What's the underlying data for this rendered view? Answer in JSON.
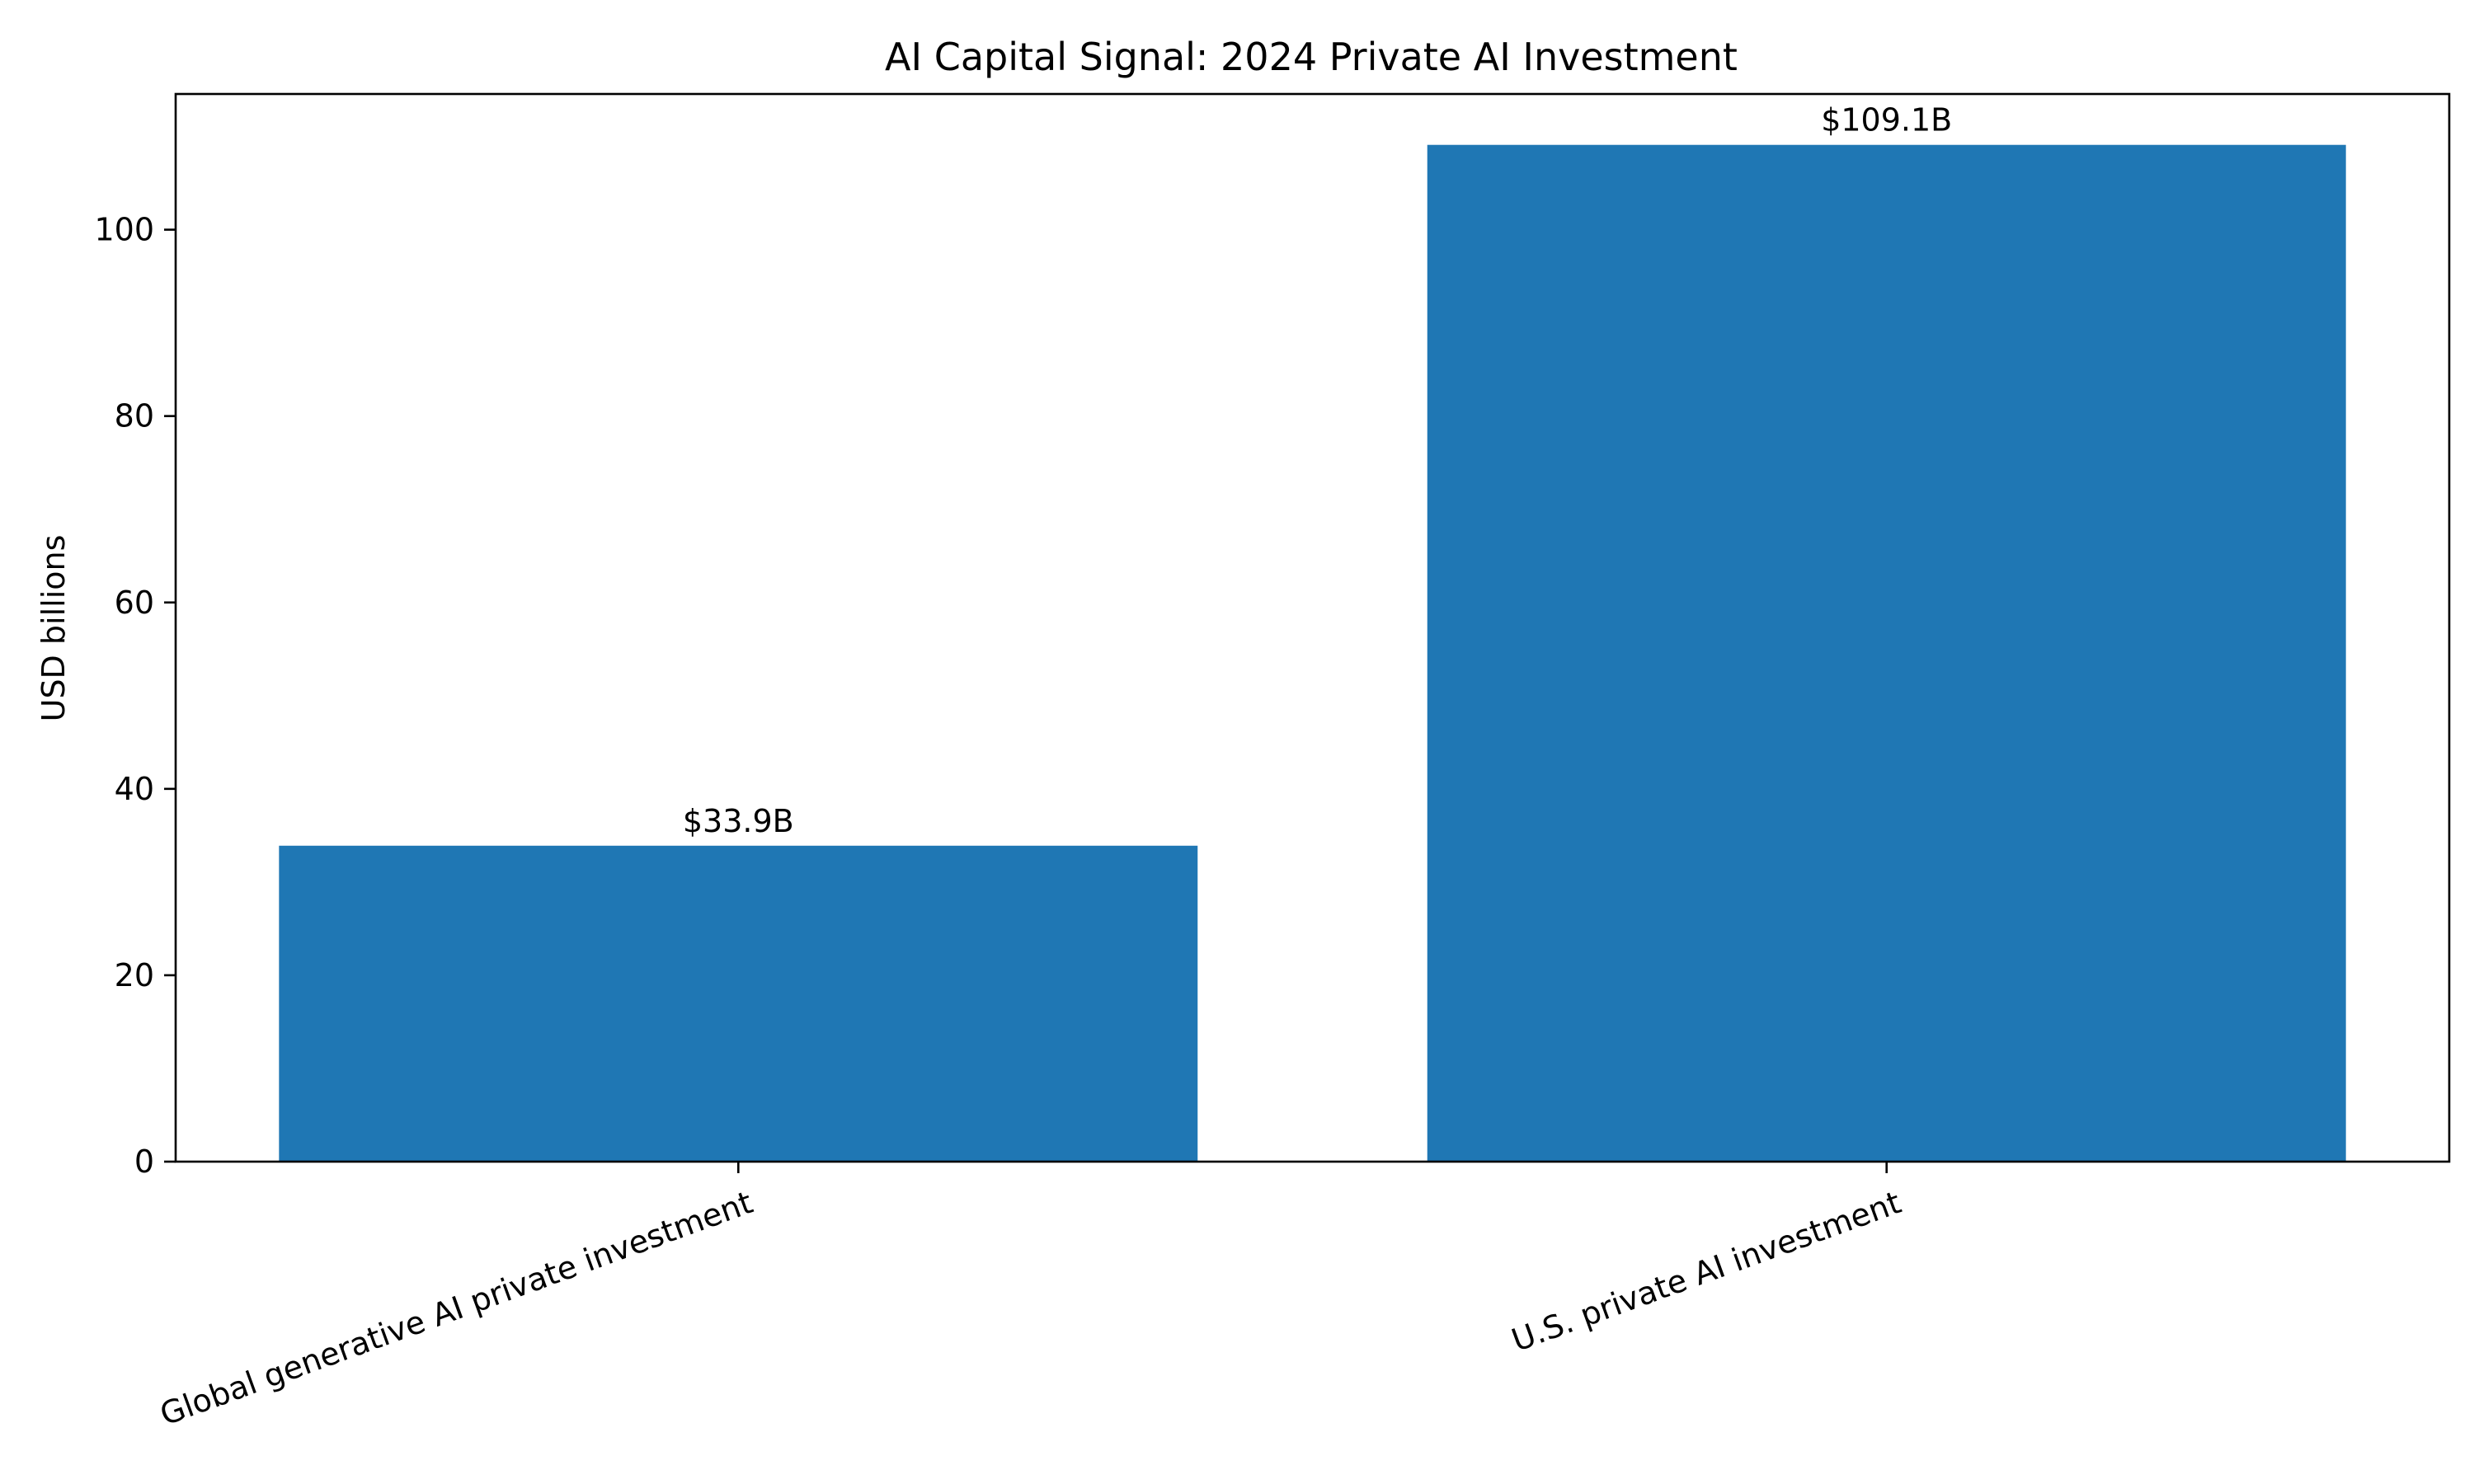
{
  "chart_data": {
    "type": "bar",
    "title": "AI Capital Signal: 2024 Private AI Investment",
    "xlabel": "",
    "ylabel": "USD billions",
    "categories": [
      "Global generative AI private investment",
      "U.S. private AI investment"
    ],
    "values": [
      33.9,
      109.1
    ],
    "data_labels": [
      "$33.9B",
      "$109.1B"
    ],
    "ylim": [
      0,
      114.56
    ],
    "yticks": [
      0,
      20,
      40,
      60,
      80,
      100
    ],
    "ytick_labels": [
      "0",
      "20",
      "40",
      "60",
      "80",
      "100"
    ],
    "bar_color": "#1f77b4",
    "grid": false,
    "legend": "none"
  }
}
